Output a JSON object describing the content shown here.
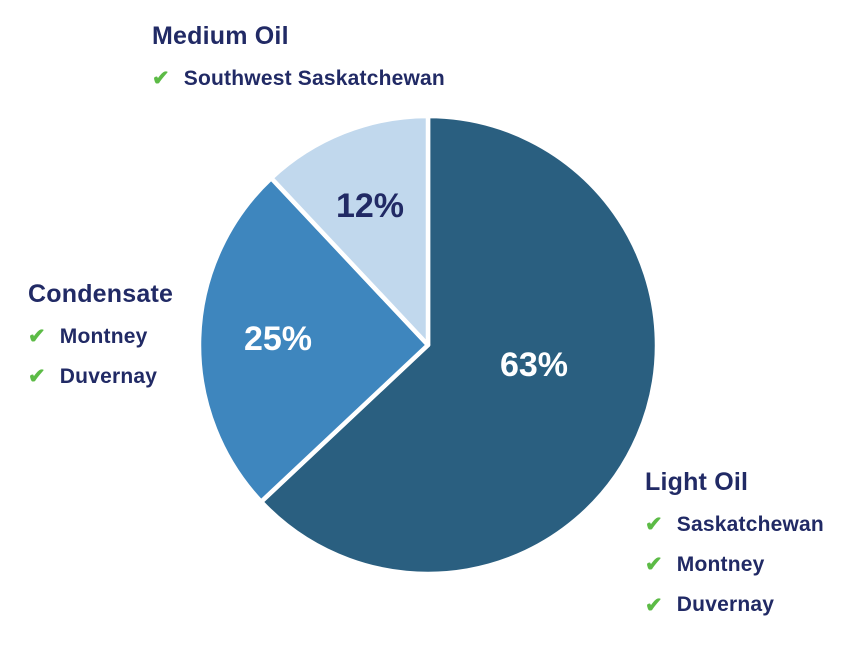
{
  "colors": {
    "background": "#FFFFFF",
    "navy_text": "#212A65",
    "check_green": "#5CBB46",
    "slice_dark_blue": "#2A5F80",
    "slice_medium_blue": "#3E86BE",
    "slice_light_blue": "#C1D8ED",
    "slice_divider_white": "#FFFFFF"
  },
  "icons": {
    "check": "✔"
  },
  "chart_data": {
    "type": "pie",
    "start_angle_deg": 0,
    "direction": "clockwise",
    "legend_position": "around",
    "slices": [
      {
        "label": "Light Oil",
        "value": 63,
        "pct_label": "63%",
        "color": "#2A5F80",
        "pct_text_color": "#FFFFFF",
        "regions": [
          "Saskatchewan",
          "Montney",
          "Duvernay"
        ]
      },
      {
        "label": "Condensate",
        "value": 25,
        "pct_label": "25%",
        "color": "#3E86BE",
        "pct_text_color": "#FFFFFF",
        "regions": [
          "Montney",
          "Duvernay"
        ]
      },
      {
        "label": "Medium Oil",
        "value": 12,
        "pct_label": "12%",
        "color": "#C1D8ED",
        "pct_text_color": "#212A65",
        "regions": [
          "Southwest Saskatchewan"
        ]
      }
    ]
  }
}
